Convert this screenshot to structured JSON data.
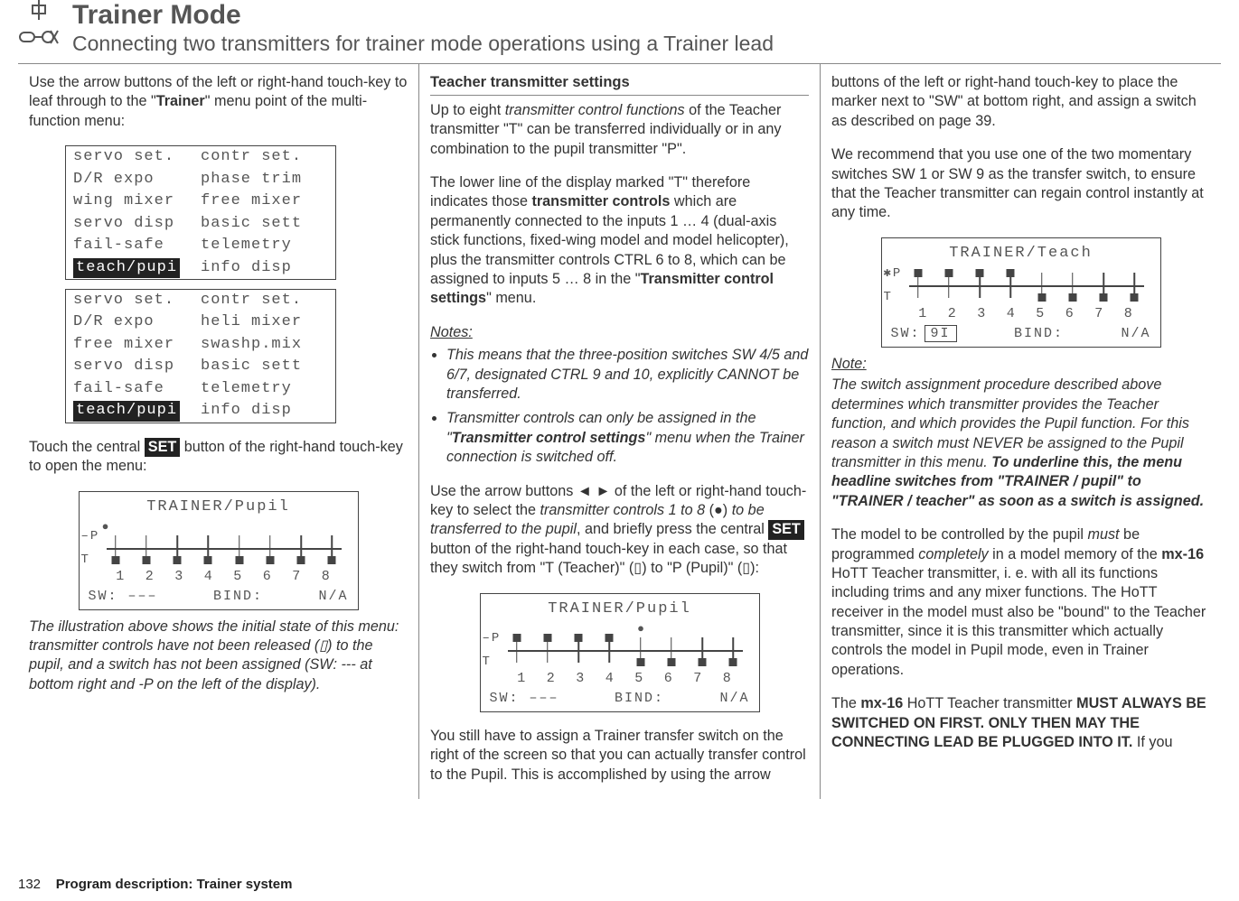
{
  "header": {
    "title": "Trainer Mode",
    "subtitle": "Connecting two transmitters for trainer mode operations using a Trainer lead"
  },
  "col1": {
    "intro_a": "Use the arrow buttons of the left or right-hand touch-key to leaf through to the \"",
    "intro_b": "Trainer",
    "intro_c": "\" menu point of the multi-function menu:",
    "menu1": {
      "rows": [
        {
          "l": "servo set.",
          "r": "contr set."
        },
        {
          "l": "D/R expo",
          "r": "phase trim"
        },
        {
          "l": "wing mixer",
          "r": "free mixer"
        },
        {
          "l": "servo disp",
          "r": "basic sett"
        },
        {
          "l": "fail-safe",
          "r": "telemetry"
        },
        {
          "l": "teach/pupi",
          "r": "info disp",
          "sel": true
        }
      ]
    },
    "menu2": {
      "rows": [
        {
          "l": "servo set.",
          "r": "contr set."
        },
        {
          "l": "D/R expo",
          "r": "heli mixer"
        },
        {
          "l": "free mixer",
          "r": "swashp.mix"
        },
        {
          "l": "servo disp",
          "r": "basic sett"
        },
        {
          "l": "fail-safe",
          "r": "telemetry"
        },
        {
          "l": "teach/pupi",
          "r": "info disp",
          "sel": true
        }
      ]
    },
    "open_a": "Touch the central ",
    "open_set": "SET",
    "open_b": " button of the right-hand touch-key to open the menu:",
    "lcd1": {
      "title": "TRAINER/Pupil",
      "p_label": "–P",
      "t_label": "T",
      "dot_col": 1,
      "markers": [
        "b",
        "b",
        "b",
        "b",
        "b",
        "b",
        "b",
        "b"
      ],
      "nums": [
        "1",
        "2",
        "3",
        "4",
        "5",
        "6",
        "7",
        "8"
      ],
      "sw": "SW: –––",
      "bind": "BIND:",
      "na": "N/A"
    },
    "caption": "The illustration above shows the initial state of this menu: transmitter controls have not been released (▯) to the pupil, and a switch has not been assigned (SW: --- at bottom right and -P on the left of the display)."
  },
  "col2": {
    "h": "Teacher transmitter settings",
    "p1_a": "Up to eight ",
    "p1_b": "transmitter control functions",
    "p1_c": " of the Teacher transmitter \"T\" can be transferred individually or in any combination to the pupil transmitter \"P\".",
    "p2_a": "The lower line of the display marked \"T\" therefore indicates those ",
    "p2_b": "transmitter controls",
    "p2_c": " which are permanently connected to the inputs 1 … 4 (dual-axis stick functions, fixed-wing model and model helicopter), plus the transmitter controls CTRL 6 to 8, which can be assigned to inputs 5 … 8 in the \"",
    "p2_d": "Transmitter control settings",
    "p2_e": "\" menu.",
    "notes_h": "Notes:",
    "note1": "This means that the three-position switches SW 4/5 and 6/7, designated CTRL 9 and 10, explicitly CANNOT be transferred.",
    "note2_a": "Transmitter controls can only be assigned in the \"",
    "note2_b": "Transmitter control settings",
    "note2_c": "\" menu when the Trainer connection is switched off.",
    "p3_a": "Use the arrow buttons ◄ ► of the left or right-hand touch-key to select the ",
    "p3_b": "transmitter controls 1 to 8",
    "p3_c": " (●) ",
    "p3_d": "to be transferred to the pupil",
    "p3_e": ", and briefly press the central ",
    "p3_set": "SET",
    "p3_f": " button of the right-hand touch-key in each case, so that they switch from \"T (Teacher)\" (▯) to \"P (Pupil)\" (▯):",
    "lcd2": {
      "title": "TRAINER/Pupil",
      "p_label": "–P",
      "t_label": "T",
      "dot_col": 5,
      "markers": [
        "t",
        "t",
        "t",
        "t",
        "b",
        "b",
        "b",
        "b"
      ],
      "nums": [
        "1",
        "2",
        "3",
        "4",
        "5",
        "6",
        "7",
        "8"
      ],
      "sw": "SW: –––",
      "bind": "BIND:",
      "na": "N/A"
    },
    "p4": "You still have to assign a Trainer transfer switch on the right of the screen so that you can actually transfer control to the Pupil. This is accomplished by using the arrow"
  },
  "col3": {
    "p1": "buttons of the left or right-hand touch-key to place the marker next to \"SW\" at bottom right, and assign a switch as described on page 39.",
    "p2": "We recommend that you use one of the two momentary switches SW 1 or SW 9 as the transfer switch, to ensure that the Teacher transmitter can regain control instantly at any time.",
    "lcd3": {
      "title": "TRAINER/Teach",
      "p_label": "✱P",
      "t_label": "T",
      "dot_col": 0,
      "markers": [
        "t",
        "t",
        "t",
        "t",
        "b",
        "b",
        "b",
        "b"
      ],
      "nums": [
        "1",
        "2",
        "3",
        "4",
        "5",
        "6",
        "7",
        "8"
      ],
      "sw_label": "SW:",
      "sw_val": "9I",
      "bind": "BIND:",
      "na": "N/A"
    },
    "note_h": "Note:",
    "note_a": "The switch assignment procedure described above determines which transmitter provides the Teacher function, and which provides the Pupil function. For this reason a switch must NEVER be assigned to the Pupil transmitter in this menu. ",
    "note_b": "To underline this, the menu headline switches from \"TRAINER / pupil\" to \"TRAINER / teacher\" as soon as a switch is assigned.",
    "p3_a": "The model to be controlled by the pupil ",
    "p3_b": "must",
    "p3_c": " be programmed ",
    "p3_d": "completely",
    "p3_e": " in a model memory of the ",
    "p3_f": "mx-16",
    "p3_g": " HoTT Teacher transmitter, i. e. with all its functions including trims and any mixer functions. The HoTT receiver in the model must also be \"bound\" to the Teacher transmitter, since it is this transmitter which actually controls the model in Pupil mode, even in Trainer operations.",
    "p4_a": "The ",
    "p4_b": "mx-16",
    "p4_c": " HoTT Teacher transmitter ",
    "p4_d": "MUST ALWAYS BE SWITCHED ON FIRST. ONLY THEN MAY THE CONNECTING LEAD BE PLUGGED INTO IT.",
    "p4_e": " If you"
  },
  "footer": {
    "page": "132",
    "label": "Program description: Trainer system"
  }
}
